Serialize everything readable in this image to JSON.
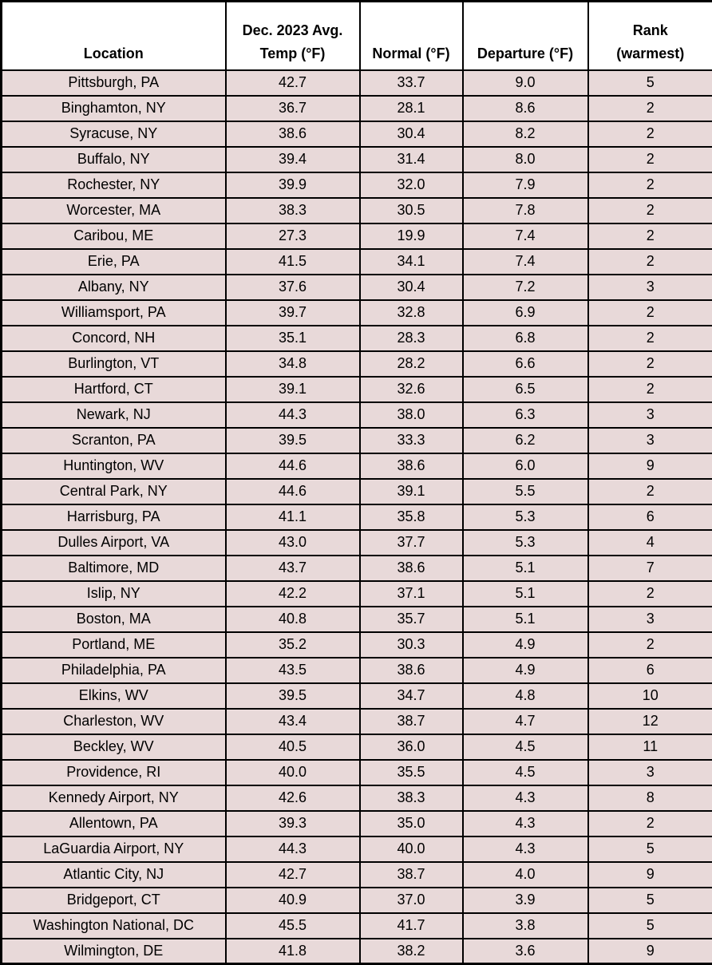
{
  "colors": {
    "row_bg": "#e8d9d9",
    "header_bg": "#ffffff",
    "border": "#000000",
    "text": "#000000"
  },
  "table": {
    "columns": [
      {
        "id": "location",
        "label": "Location",
        "lines": [
          "Location"
        ]
      },
      {
        "id": "avg_temp",
        "label": "Dec. 2023 Avg. Temp (°F)",
        "lines": [
          "Dec. 2023 Avg.",
          "Temp (°F)"
        ]
      },
      {
        "id": "normal",
        "label": "Normal (°F)",
        "lines": [
          "Normal (°F)"
        ]
      },
      {
        "id": "departure",
        "label": "Departure (°F)",
        "lines": [
          "Departure (°F)"
        ]
      },
      {
        "id": "rank",
        "label": "Rank (warmest)",
        "lines": [
          "Rank",
          "(warmest)"
        ]
      }
    ],
    "rows": [
      {
        "location": "Pittsburgh, PA",
        "avg_temp": "42.7",
        "normal": "33.7",
        "departure": "9.0",
        "rank": "5"
      },
      {
        "location": "Binghamton, NY",
        "avg_temp": "36.7",
        "normal": "28.1",
        "departure": "8.6",
        "rank": "2"
      },
      {
        "location": "Syracuse, NY",
        "avg_temp": "38.6",
        "normal": "30.4",
        "departure": "8.2",
        "rank": "2"
      },
      {
        "location": "Buffalo, NY",
        "avg_temp": "39.4",
        "normal": "31.4",
        "departure": "8.0",
        "rank": "2"
      },
      {
        "location": "Rochester, NY",
        "avg_temp": "39.9",
        "normal": "32.0",
        "departure": "7.9",
        "rank": "2"
      },
      {
        "location": "Worcester, MA",
        "avg_temp": "38.3",
        "normal": "30.5",
        "departure": "7.8",
        "rank": "2"
      },
      {
        "location": "Caribou, ME",
        "avg_temp": "27.3",
        "normal": "19.9",
        "departure": "7.4",
        "rank": "2"
      },
      {
        "location": "Erie, PA",
        "avg_temp": "41.5",
        "normal": "34.1",
        "departure": "7.4",
        "rank": "2"
      },
      {
        "location": "Albany, NY",
        "avg_temp": "37.6",
        "normal": "30.4",
        "departure": "7.2",
        "rank": "3"
      },
      {
        "location": "Williamsport, PA",
        "avg_temp": "39.7",
        "normal": "32.8",
        "departure": "6.9",
        "rank": "2"
      },
      {
        "location": "Concord, NH",
        "avg_temp": "35.1",
        "normal": "28.3",
        "departure": "6.8",
        "rank": "2"
      },
      {
        "location": "Burlington, VT",
        "avg_temp": "34.8",
        "normal": "28.2",
        "departure": "6.6",
        "rank": "2"
      },
      {
        "location": "Hartford, CT",
        "avg_temp": "39.1",
        "normal": "32.6",
        "departure": "6.5",
        "rank": "2"
      },
      {
        "location": "Newark, NJ",
        "avg_temp": "44.3",
        "normal": "38.0",
        "departure": "6.3",
        "rank": "3"
      },
      {
        "location": "Scranton, PA",
        "avg_temp": "39.5",
        "normal": "33.3",
        "departure": "6.2",
        "rank": "3"
      },
      {
        "location": "Huntington, WV",
        "avg_temp": "44.6",
        "normal": "38.6",
        "departure": "6.0",
        "rank": "9"
      },
      {
        "location": "Central Park, NY",
        "avg_temp": "44.6",
        "normal": "39.1",
        "departure": "5.5",
        "rank": "2"
      },
      {
        "location": "Harrisburg, PA",
        "avg_temp": "41.1",
        "normal": "35.8",
        "departure": "5.3",
        "rank": "6"
      },
      {
        "location": "Dulles Airport, VA",
        "avg_temp": "43.0",
        "normal": "37.7",
        "departure": "5.3",
        "rank": "4"
      },
      {
        "location": "Baltimore, MD",
        "avg_temp": "43.7",
        "normal": "38.6",
        "departure": "5.1",
        "rank": "7"
      },
      {
        "location": "Islip, NY",
        "avg_temp": "42.2",
        "normal": "37.1",
        "departure": "5.1",
        "rank": "2"
      },
      {
        "location": "Boston, MA",
        "avg_temp": "40.8",
        "normal": "35.7",
        "departure": "5.1",
        "rank": "3"
      },
      {
        "location": "Portland, ME",
        "avg_temp": "35.2",
        "normal": "30.3",
        "departure": "4.9",
        "rank": "2"
      },
      {
        "location": "Philadelphia, PA",
        "avg_temp": "43.5",
        "normal": "38.6",
        "departure": "4.9",
        "rank": "6"
      },
      {
        "location": "Elkins, WV",
        "avg_temp": "39.5",
        "normal": "34.7",
        "departure": "4.8",
        "rank": "10"
      },
      {
        "location": "Charleston, WV",
        "avg_temp": "43.4",
        "normal": "38.7",
        "departure": "4.7",
        "rank": "12"
      },
      {
        "location": "Beckley, WV",
        "avg_temp": "40.5",
        "normal": "36.0",
        "departure": "4.5",
        "rank": "11"
      },
      {
        "location": "Providence, RI",
        "avg_temp": "40.0",
        "normal": "35.5",
        "departure": "4.5",
        "rank": "3"
      },
      {
        "location": "Kennedy Airport, NY",
        "avg_temp": "42.6",
        "normal": "38.3",
        "departure": "4.3",
        "rank": "8"
      },
      {
        "location": "Allentown, PA",
        "avg_temp": "39.3",
        "normal": "35.0",
        "departure": "4.3",
        "rank": "2"
      },
      {
        "location": "LaGuardia Airport, NY",
        "avg_temp": "44.3",
        "normal": "40.0",
        "departure": "4.3",
        "rank": "5"
      },
      {
        "location": "Atlantic City, NJ",
        "avg_temp": "42.7",
        "normal": "38.7",
        "departure": "4.0",
        "rank": "9"
      },
      {
        "location": "Bridgeport, CT",
        "avg_temp": "40.9",
        "normal": "37.0",
        "departure": "3.9",
        "rank": "5"
      },
      {
        "location": "Washington National, DC",
        "avg_temp": "45.5",
        "normal": "41.7",
        "departure": "3.8",
        "rank": "5"
      },
      {
        "location": "Wilmington, DE",
        "avg_temp": "41.8",
        "normal": "38.2",
        "departure": "3.6",
        "rank": "9"
      }
    ]
  },
  "chart_data": {
    "type": "table",
    "title": "",
    "columns": [
      "Location",
      "Dec. 2023 Avg. Temp (°F)",
      "Normal (°F)",
      "Departure (°F)",
      "Rank (warmest)"
    ],
    "rows": [
      [
        "Pittsburgh, PA",
        42.7,
        33.7,
        9.0,
        5
      ],
      [
        "Binghamton, NY",
        36.7,
        28.1,
        8.6,
        2
      ],
      [
        "Syracuse, NY",
        38.6,
        30.4,
        8.2,
        2
      ],
      [
        "Buffalo, NY",
        39.4,
        31.4,
        8.0,
        2
      ],
      [
        "Rochester, NY",
        39.9,
        32.0,
        7.9,
        2
      ],
      [
        "Worcester, MA",
        38.3,
        30.5,
        7.8,
        2
      ],
      [
        "Caribou, ME",
        27.3,
        19.9,
        7.4,
        2
      ],
      [
        "Erie, PA",
        41.5,
        34.1,
        7.4,
        2
      ],
      [
        "Albany, NY",
        37.6,
        30.4,
        7.2,
        3
      ],
      [
        "Williamsport, PA",
        39.7,
        32.8,
        6.9,
        2
      ],
      [
        "Concord, NH",
        35.1,
        28.3,
        6.8,
        2
      ],
      [
        "Burlington, VT",
        34.8,
        28.2,
        6.6,
        2
      ],
      [
        "Hartford, CT",
        39.1,
        32.6,
        6.5,
        2
      ],
      [
        "Newark, NJ",
        44.3,
        38.0,
        6.3,
        3
      ],
      [
        "Scranton, PA",
        39.5,
        33.3,
        6.2,
        3
      ],
      [
        "Huntington, WV",
        44.6,
        38.6,
        6.0,
        9
      ],
      [
        "Central Park, NY",
        44.6,
        39.1,
        5.5,
        2
      ],
      [
        "Harrisburg, PA",
        41.1,
        35.8,
        5.3,
        6
      ],
      [
        "Dulles Airport, VA",
        43.0,
        37.7,
        5.3,
        4
      ],
      [
        "Baltimore, MD",
        43.7,
        38.6,
        5.1,
        7
      ],
      [
        "Islip, NY",
        42.2,
        37.1,
        5.1,
        2
      ],
      [
        "Boston, MA",
        40.8,
        35.7,
        5.1,
        3
      ],
      [
        "Portland, ME",
        35.2,
        30.3,
        4.9,
        2
      ],
      [
        "Philadelphia, PA",
        43.5,
        38.6,
        4.9,
        6
      ],
      [
        "Elkins, WV",
        39.5,
        34.7,
        4.8,
        10
      ],
      [
        "Charleston, WV",
        43.4,
        38.7,
        4.7,
        12
      ],
      [
        "Beckley, WV",
        40.5,
        36.0,
        4.5,
        11
      ],
      [
        "Providence, RI",
        40.0,
        35.5,
        4.5,
        3
      ],
      [
        "Kennedy Airport, NY",
        42.6,
        38.3,
        4.3,
        8
      ],
      [
        "Allentown, PA",
        39.3,
        35.0,
        4.3,
        2
      ],
      [
        "LaGuardia Airport, NY",
        44.3,
        40.0,
        4.3,
        5
      ],
      [
        "Atlantic City, NJ",
        42.7,
        38.7,
        4.0,
        9
      ],
      [
        "Bridgeport, CT",
        40.9,
        37.0,
        3.9,
        5
      ],
      [
        "Washington National, DC",
        45.5,
        41.7,
        3.8,
        5
      ],
      [
        "Wilmington, DE",
        41.8,
        38.2,
        3.6,
        9
      ]
    ]
  }
}
